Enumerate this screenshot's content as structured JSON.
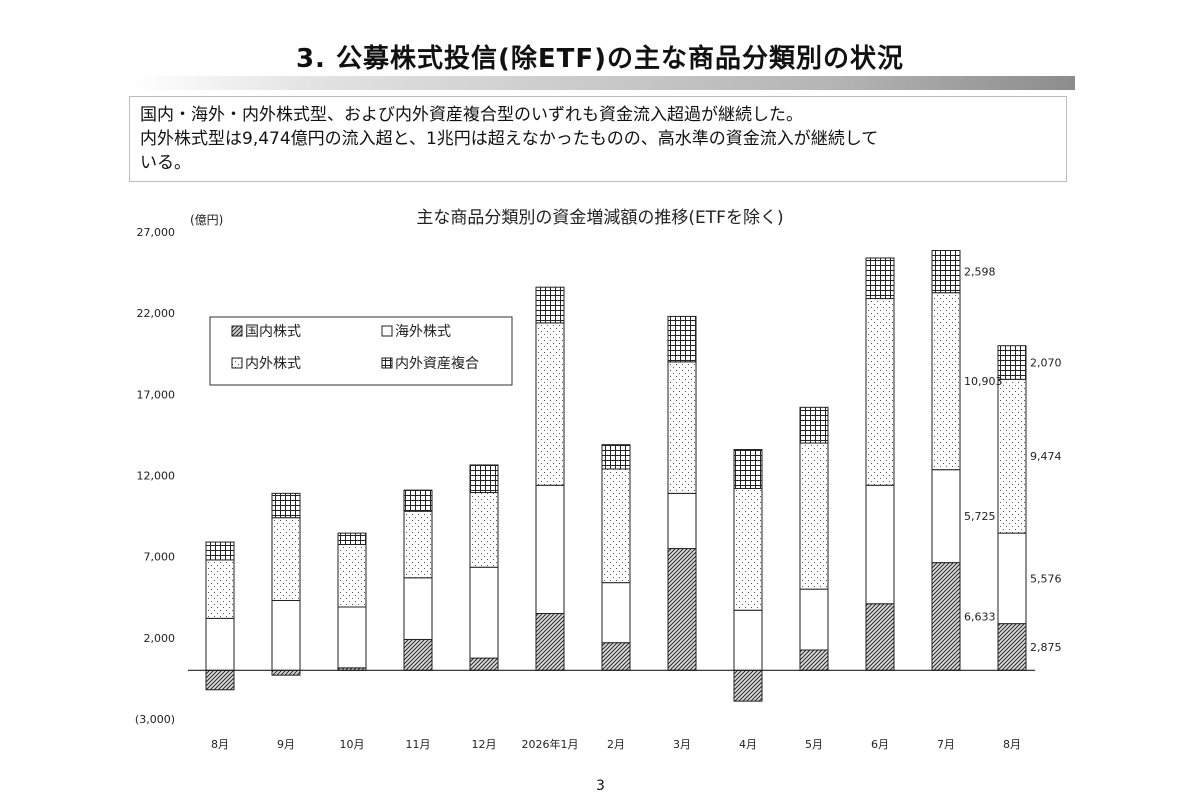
{
  "page": {
    "title": "3. 公募株式投信(除ETF)の主な商品分類別の状況",
    "summary_lines": [
      "国内・海外・内外株式型、および内外資産複合型のいずれも資金流入超過が継続した。",
      "内外株式型は9,474億円の流入超と、1兆円は超えなかったものの、高水準の資金流入が継続して",
      "いる。"
    ],
    "page_number": "3"
  },
  "chart_data": {
    "type": "bar",
    "stacked": true,
    "title": "主な商品分類別の資金増減額の推移(ETFを除く)",
    "ylabel": "(億円)",
    "xlabel": "",
    "ylim": [
      -3000,
      27000
    ],
    "yticks": [
      27000,
      22000,
      17000,
      12000,
      7000,
      2000,
      -3000
    ],
    "ytick_labels": [
      "27,000",
      "22,000",
      "17,000",
      "12,000",
      "7,000",
      "2,000",
      "(3,000)"
    ],
    "grid": false,
    "legend_position": "top-left",
    "categories": [
      "8月",
      "9月",
      "10月",
      "11月",
      "12月",
      "2026年1月",
      "2月",
      "3月",
      "4月",
      "5月",
      "6月",
      "7月",
      "8月"
    ],
    "series": [
      {
        "name": "国内株式",
        "pattern": "diagonal-hatch",
        "values": [
          -1200,
          -300,
          150,
          1900,
          750,
          3500,
          1700,
          7500,
          -1900,
          1250,
          4100,
          6633,
          2875
        ]
      },
      {
        "name": "海外株式",
        "pattern": "blank",
        "values": [
          3200,
          4300,
          3750,
          3800,
          5600,
          7900,
          3700,
          3400,
          3700,
          3750,
          7300,
          5725,
          5576
        ]
      },
      {
        "name": "内外株式",
        "pattern": "dotted",
        "values": [
          3600,
          5100,
          3850,
          4100,
          4600,
          10000,
          7000,
          8100,
          7500,
          9000,
          11500,
          10903,
          9474
        ]
      },
      {
        "name": "内外資産複合",
        "pattern": "grid",
        "values": [
          1100,
          1500,
          700,
          1300,
          1700,
          2200,
          1500,
          2800,
          2400,
          2200,
          2500,
          2598,
          2070
        ]
      }
    ],
    "data_labels": [
      {
        "category_index": 11,
        "series": "国内株式",
        "text": "6,633"
      },
      {
        "category_index": 11,
        "series": "海外株式",
        "text": "5,725"
      },
      {
        "category_index": 11,
        "series": "内外株式",
        "text": "10,903"
      },
      {
        "category_index": 11,
        "series": "内外資産複合",
        "text": "2,598"
      },
      {
        "category_index": 12,
        "series": "国内株式",
        "text": "2,875"
      },
      {
        "category_index": 12,
        "series": "海外株式",
        "text": "5,576"
      },
      {
        "category_index": 12,
        "series": "内外株式",
        "text": "9,474"
      },
      {
        "category_index": 12,
        "series": "内外資産複合",
        "text": "2,070"
      }
    ]
  }
}
